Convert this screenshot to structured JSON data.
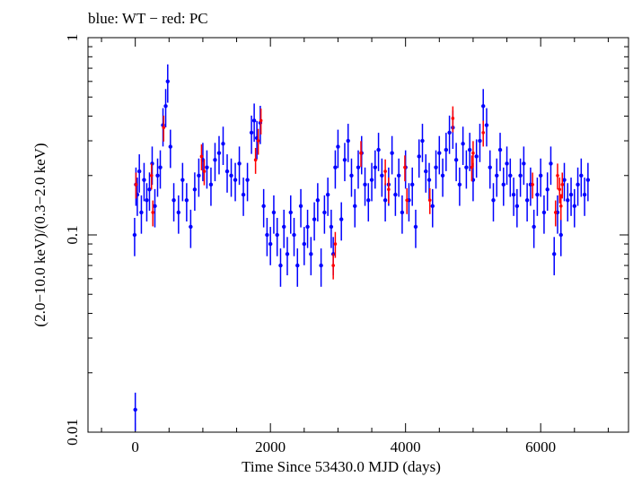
{
  "chart_data": {
    "type": "scatter",
    "title": "blue: WT − red: PC",
    "xlabel": "Time Since 53430.0 MJD (days)",
    "ylabel": "(2.0−10.0 keV)/(0.3−2.0 keV)",
    "xlim": [
      -700,
      7300
    ],
    "ylim": [
      0.01,
      1
    ],
    "y_scale": "log",
    "x_ticks": [
      0,
      2000,
      4000,
      6000
    ],
    "x_tick_labels": [
      "0",
      "2000",
      "4000",
      "6000"
    ],
    "y_ticks": [
      0.01,
      0.1,
      1
    ],
    "y_tick_labels": [
      "0.01",
      "0.1",
      "1"
    ],
    "grid": false,
    "colors": {
      "WT": "#0000ff",
      "PC": "#ff0000"
    },
    "series": [
      {
        "name": "WT",
        "color": "#0000ff",
        "points": [
          [
            -10,
            0.1
          ],
          [
            0,
            0.013
          ],
          [
            10,
            0.18
          ],
          [
            30,
            0.16
          ],
          [
            60,
            0.21
          ],
          [
            90,
            0.13
          ],
          [
            130,
            0.19
          ],
          [
            170,
            0.15
          ],
          [
            210,
            0.17
          ],
          [
            250,
            0.23
          ],
          [
            290,
            0.14
          ],
          [
            330,
            0.2
          ],
          [
            370,
            0.22
          ],
          [
            410,
            0.36
          ],
          [
            450,
            0.45
          ],
          [
            480,
            0.6
          ],
          [
            520,
            0.28
          ],
          [
            570,
            0.15
          ],
          [
            640,
            0.13
          ],
          [
            700,
            0.19
          ],
          [
            760,
            0.15
          ],
          [
            820,
            0.11
          ],
          [
            880,
            0.17
          ],
          [
            940,
            0.2
          ],
          [
            1000,
            0.24
          ],
          [
            1060,
            0.22
          ],
          [
            1120,
            0.18
          ],
          [
            1180,
            0.24
          ],
          [
            1240,
            0.26
          ],
          [
            1300,
            0.29
          ],
          [
            1360,
            0.21
          ],
          [
            1420,
            0.2
          ],
          [
            1480,
            0.19
          ],
          [
            1540,
            0.23
          ],
          [
            1600,
            0.16
          ],
          [
            1660,
            0.19
          ],
          [
            1720,
            0.33
          ],
          [
            1760,
            0.38
          ],
          [
            1800,
            0.31
          ],
          [
            1850,
            0.37
          ],
          [
            1900,
            0.14
          ],
          [
            1950,
            0.1
          ],
          [
            2000,
            0.09
          ],
          [
            2050,
            0.13
          ],
          [
            2100,
            0.1
          ],
          [
            2150,
            0.07
          ],
          [
            2200,
            0.11
          ],
          [
            2250,
            0.08
          ],
          [
            2300,
            0.13
          ],
          [
            2350,
            0.1
          ],
          [
            2400,
            0.07
          ],
          [
            2450,
            0.14
          ],
          [
            2500,
            0.09
          ],
          [
            2550,
            0.11
          ],
          [
            2600,
            0.08
          ],
          [
            2650,
            0.12
          ],
          [
            2700,
            0.15
          ],
          [
            2750,
            0.07
          ],
          [
            2800,
            0.13
          ],
          [
            2850,
            0.16
          ],
          [
            2900,
            0.11
          ],
          [
            2930,
            0.08
          ],
          [
            2960,
            0.22
          ],
          [
            3000,
            0.28
          ],
          [
            3050,
            0.12
          ],
          [
            3100,
            0.24
          ],
          [
            3150,
            0.3
          ],
          [
            3200,
            0.2
          ],
          [
            3250,
            0.14
          ],
          [
            3300,
            0.22
          ],
          [
            3350,
            0.26
          ],
          [
            3400,
            0.18
          ],
          [
            3450,
            0.15
          ],
          [
            3500,
            0.19
          ],
          [
            3550,
            0.22
          ],
          [
            3600,
            0.27
          ],
          [
            3650,
            0.2
          ],
          [
            3700,
            0.15
          ],
          [
            3750,
            0.18
          ],
          [
            3800,
            0.26
          ],
          [
            3850,
            0.16
          ],
          [
            3900,
            0.2
          ],
          [
            3950,
            0.13
          ],
          [
            4000,
            0.22
          ],
          [
            4050,
            0.15
          ],
          [
            4100,
            0.18
          ],
          [
            4150,
            0.11
          ],
          [
            4200,
            0.25
          ],
          [
            4250,
            0.3
          ],
          [
            4300,
            0.21
          ],
          [
            4350,
            0.19
          ],
          [
            4400,
            0.14
          ],
          [
            4450,
            0.22
          ],
          [
            4500,
            0.26
          ],
          [
            4550,
            0.2
          ],
          [
            4600,
            0.27
          ],
          [
            4650,
            0.33
          ],
          [
            4700,
            0.35
          ],
          [
            4750,
            0.24
          ],
          [
            4800,
            0.18
          ],
          [
            4850,
            0.29
          ],
          [
            4900,
            0.22
          ],
          [
            4950,
            0.27
          ],
          [
            5000,
            0.19
          ],
          [
            5050,
            0.25
          ],
          [
            5100,
            0.3
          ],
          [
            5150,
            0.45
          ],
          [
            5200,
            0.36
          ],
          [
            5250,
            0.22
          ],
          [
            5300,
            0.15
          ],
          [
            5350,
            0.2
          ],
          [
            5400,
            0.27
          ],
          [
            5450,
            0.18
          ],
          [
            5500,
            0.23
          ],
          [
            5550,
            0.2
          ],
          [
            5600,
            0.16
          ],
          [
            5650,
            0.14
          ],
          [
            5700,
            0.2
          ],
          [
            5750,
            0.23
          ],
          [
            5800,
            0.15
          ],
          [
            5850,
            0.18
          ],
          [
            5900,
            0.11
          ],
          [
            5950,
            0.16
          ],
          [
            6000,
            0.2
          ],
          [
            6050,
            0.13
          ],
          [
            6100,
            0.17
          ],
          [
            6150,
            0.23
          ],
          [
            6200,
            0.08
          ],
          [
            6250,
            0.13
          ],
          [
            6300,
            0.1
          ],
          [
            6350,
            0.19
          ],
          [
            6400,
            0.15
          ],
          [
            6450,
            0.16
          ],
          [
            6500,
            0.14
          ],
          [
            6550,
            0.18
          ],
          [
            6600,
            0.2
          ],
          [
            6650,
            0.16
          ],
          [
            6700,
            0.19
          ]
        ]
      },
      {
        "name": "PC",
        "color": "#ff0000",
        "points": [
          [
            10,
            0.18
          ],
          [
            240,
            0.2
          ],
          [
            260,
            0.13
          ],
          [
            420,
            0.35
          ],
          [
            980,
            0.25
          ],
          [
            1020,
            0.21
          ],
          [
            1780,
            0.24
          ],
          [
            1820,
            0.3
          ],
          [
            1860,
            0.38
          ],
          [
            2930,
            0.07
          ],
          [
            2960,
            0.09
          ],
          [
            3340,
            0.26
          ],
          [
            3700,
            0.21
          ],
          [
            3750,
            0.17
          ],
          [
            3990,
            0.22
          ],
          [
            4020,
            0.15
          ],
          [
            4360,
            0.15
          ],
          [
            4700,
            0.39
          ],
          [
            4980,
            0.22
          ],
          [
            5000,
            0.26
          ],
          [
            5150,
            0.33
          ],
          [
            5880,
            0.18
          ],
          [
            6220,
            0.13
          ],
          [
            6250,
            0.2
          ],
          [
            6280,
            0.17
          ],
          [
            6300,
            0.14
          ],
          [
            6320,
            0.18
          ]
        ]
      }
    ]
  }
}
